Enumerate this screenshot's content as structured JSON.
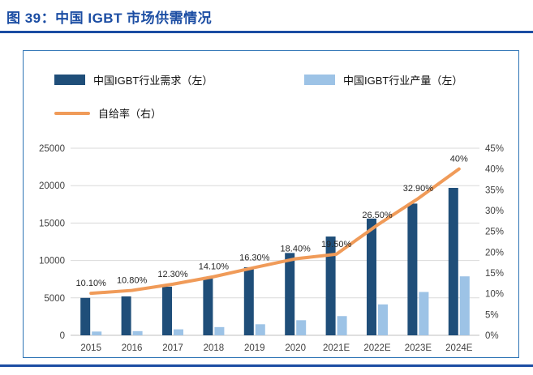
{
  "header": {
    "title": "图 39：中国 IGBT 市场供需情况"
  },
  "colors": {
    "accent": "#1B4DA3",
    "frame_border": "#2E74B5"
  },
  "chart_data": {
    "type": "bar",
    "subtype": "grouped-bars-with-line-overlay",
    "categories": [
      "2015",
      "2016",
      "2017",
      "2018",
      "2019",
      "2020",
      "2021E",
      "2022E",
      "2023E",
      "2024E"
    ],
    "series": [
      {
        "name": "中国IGBT行业需求（左）",
        "type": "bar",
        "axis": "left",
        "color": "#1F4E79",
        "values": [
          5000,
          5200,
          6500,
          7800,
          9100,
          11000,
          13200,
          15600,
          17600,
          19700
        ]
      },
      {
        "name": "中国IGBT行业产量（左）",
        "type": "bar",
        "axis": "left",
        "color": "#9DC3E6",
        "values": [
          505,
          560,
          800,
          1100,
          1480,
          2020,
          2570,
          4130,
          5790,
          7880
        ]
      },
      {
        "name": "自给率（右）",
        "type": "line",
        "axis": "right",
        "color": "#F09B59",
        "values": [
          10.1,
          10.8,
          12.3,
          14.1,
          16.3,
          18.4,
          19.5,
          26.5,
          32.9,
          40
        ],
        "point_labels": [
          "10.10%",
          "10.80%",
          "12.30%",
          "14.10%",
          "16.30%",
          "18.40%",
          "19.50%",
          "26.50%",
          "32.90%",
          "40%"
        ]
      }
    ],
    "left_axis": {
      "min": 0,
      "max": 25000,
      "ticks": [
        0,
        5000,
        10000,
        15000,
        20000,
        25000
      ]
    },
    "right_axis": {
      "min": 0,
      "max": 45,
      "ticks": [
        0,
        5,
        10,
        15,
        20,
        25,
        30,
        35,
        40,
        45
      ],
      "tick_labels": [
        "0%",
        "5%",
        "10%",
        "15%",
        "20%",
        "25%",
        "30%",
        "35%",
        "40%",
        "45%"
      ]
    },
    "legend_position": "top",
    "grid": "horizontal"
  }
}
